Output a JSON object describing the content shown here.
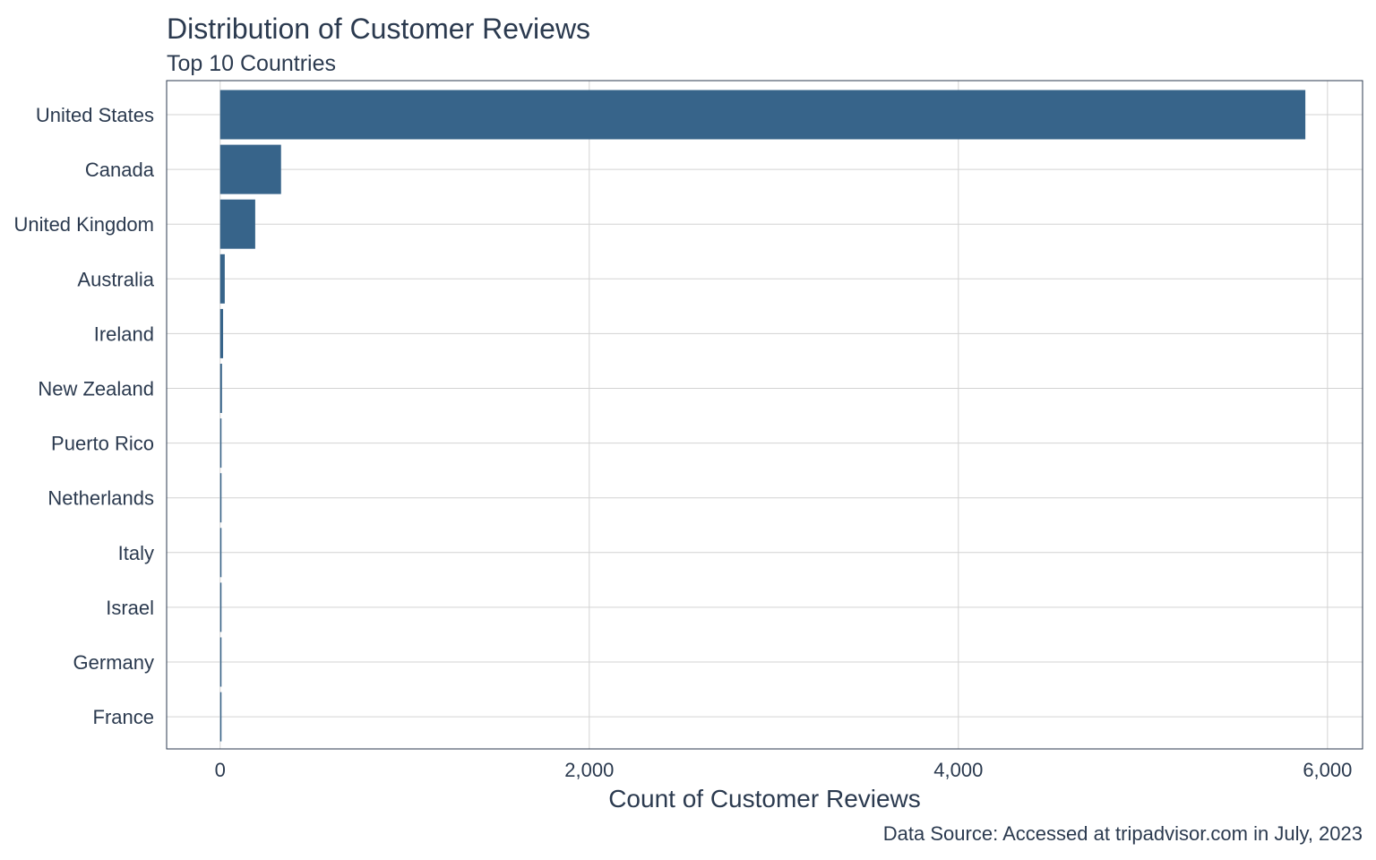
{
  "chart_data": {
    "type": "bar",
    "orientation": "horizontal",
    "title": "Distribution of Customer Reviews",
    "subtitle": "Top 10 Countries",
    "xlabel": "Count of Customer Reviews",
    "ylabel": "",
    "caption": "Data Source: Accessed at tripadvisor.com in July, 2023",
    "categories": [
      "United States",
      "Canada",
      "United Kingdom",
      "Australia",
      "Ireland",
      "New Zealand",
      "Puerto Rico",
      "Netherlands",
      "Italy",
      "Israel",
      "Germany",
      "France"
    ],
    "values": [
      5880,
      330,
      190,
      25,
      16,
      10,
      5,
      4,
      4,
      3,
      3,
      3
    ],
    "xlim": [
      -290,
      6190
    ],
    "xticks": [
      0,
      2000,
      4000,
      6000
    ],
    "xtick_labels": [
      "0",
      "2,000",
      "4,000",
      "6,000"
    ],
    "grid": true,
    "bar_color": "#37648a",
    "grid_color": "#d3d3d3",
    "text_color": "#2b3a4f"
  }
}
